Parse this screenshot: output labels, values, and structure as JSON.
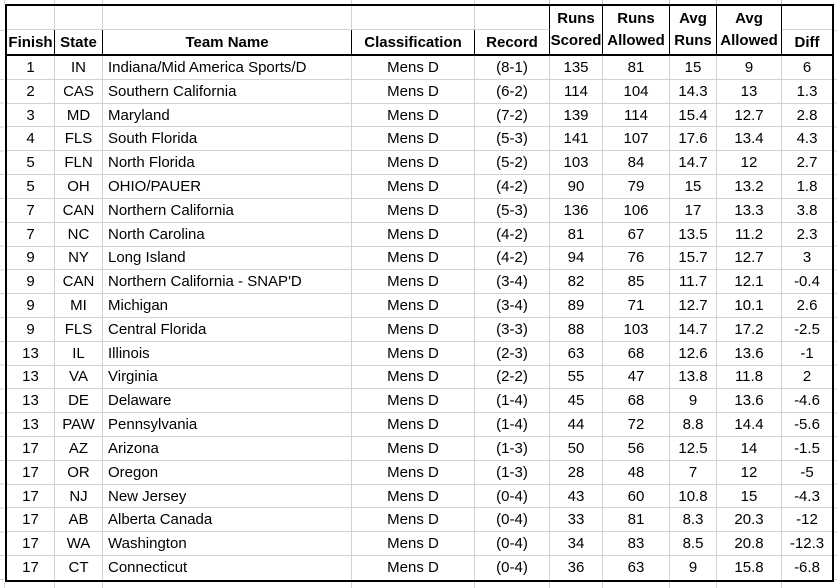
{
  "colors": {
    "background": "#ffffff",
    "gridline": "#d2d2d2",
    "border": "#000000",
    "text": "#000000"
  },
  "table": {
    "columns": [
      {
        "id": "finish",
        "top": "",
        "label": "Finish"
      },
      {
        "id": "state",
        "top": "",
        "label": "State"
      },
      {
        "id": "team-name",
        "top": "",
        "label": "Team Name"
      },
      {
        "id": "classification",
        "top": "",
        "label": "Classification"
      },
      {
        "id": "record",
        "top": "",
        "label": "Record"
      },
      {
        "id": "runs-scored",
        "top": "Runs",
        "label": "Scored"
      },
      {
        "id": "runs-allowed",
        "top": "Runs",
        "label": "Allowed"
      },
      {
        "id": "avg-runs",
        "top": "Avg",
        "label": "Runs"
      },
      {
        "id": "avg-allowed",
        "top": "Avg",
        "label": "Allowed"
      },
      {
        "id": "diff",
        "top": "",
        "label": "Diff"
      }
    ],
    "rows": [
      [
        "1",
        "IN",
        "Indiana/Mid America Sports/D",
        "Mens D",
        "(8-1)",
        "135",
        "81",
        "15",
        "9",
        "6"
      ],
      [
        "2",
        "CAS",
        "Southern California",
        "Mens D",
        "(6-2)",
        "114",
        "104",
        "14.3",
        "13",
        "1.3"
      ],
      [
        "3",
        "MD",
        "Maryland",
        "Mens D",
        "(7-2)",
        "139",
        "114",
        "15.4",
        "12.7",
        "2.8"
      ],
      [
        "4",
        "FLS",
        "South Florida",
        "Mens D",
        "(5-3)",
        "141",
        "107",
        "17.6",
        "13.4",
        "4.3"
      ],
      [
        "5",
        "FLN",
        "North Florida",
        "Mens D",
        "(5-2)",
        "103",
        "84",
        "14.7",
        "12",
        "2.7"
      ],
      [
        "5",
        "OH",
        "OHIO/PAUER",
        "Mens D",
        "(4-2)",
        "90",
        "79",
        "15",
        "13.2",
        "1.8"
      ],
      [
        "7",
        "CAN",
        "Northern California",
        "Mens D",
        "(5-3)",
        "136",
        "106",
        "17",
        "13.3",
        "3.8"
      ],
      [
        "7",
        "NC",
        "North Carolina",
        "Mens D",
        "(4-2)",
        "81",
        "67",
        "13.5",
        "11.2",
        "2.3"
      ],
      [
        "9",
        "NY",
        "Long Island",
        "Mens D",
        "(4-2)",
        "94",
        "76",
        "15.7",
        "12.7",
        "3"
      ],
      [
        "9",
        "CAN",
        "Northern California - SNAP'D",
        "Mens D",
        "(3-4)",
        "82",
        "85",
        "11.7",
        "12.1",
        "-0.4"
      ],
      [
        "9",
        "MI",
        "Michigan",
        "Mens D",
        "(3-4)",
        "89",
        "71",
        "12.7",
        "10.1",
        "2.6"
      ],
      [
        "9",
        "FLS",
        "Central Florida",
        "Mens D",
        "(3-3)",
        "88",
        "103",
        "14.7",
        "17.2",
        "-2.5"
      ],
      [
        "13",
        "IL",
        "Illinois",
        "Mens D",
        "(2-3)",
        "63",
        "68",
        "12.6",
        "13.6",
        "-1"
      ],
      [
        "13",
        "VA",
        "Virginia",
        "Mens D",
        "(2-2)",
        "55",
        "47",
        "13.8",
        "11.8",
        "2"
      ],
      [
        "13",
        "DE",
        "Delaware",
        "Mens D",
        "(1-4)",
        "45",
        "68",
        "9",
        "13.6",
        "-4.6"
      ],
      [
        "13",
        "PAW",
        "Pennsylvania",
        "Mens D",
        "(1-4)",
        "44",
        "72",
        "8.8",
        "14.4",
        "-5.6"
      ],
      [
        "17",
        "AZ",
        "Arizona",
        "Mens D",
        "(1-3)",
        "50",
        "56",
        "12.5",
        "14",
        "-1.5"
      ],
      [
        "17",
        "OR",
        "Oregon",
        "Mens D",
        "(1-3)",
        "28",
        "48",
        "7",
        "12",
        "-5"
      ],
      [
        "17",
        "NJ",
        "New Jersey",
        "Mens D",
        "(0-4)",
        "43",
        "60",
        "10.8",
        "15",
        "-4.3"
      ],
      [
        "17",
        "AB",
        "Alberta Canada",
        "Mens D",
        "(0-4)",
        "33",
        "81",
        "8.3",
        "20.3",
        "-12"
      ],
      [
        "17",
        "WA",
        "Washington",
        "Mens D",
        "(0-4)",
        "34",
        "83",
        "8.5",
        "20.8",
        "-12.3"
      ],
      [
        "17",
        "CT",
        "Connecticut",
        "Mens D",
        "(0-4)",
        "36",
        "63",
        "9",
        "15.8",
        "-6.8"
      ]
    ]
  }
}
